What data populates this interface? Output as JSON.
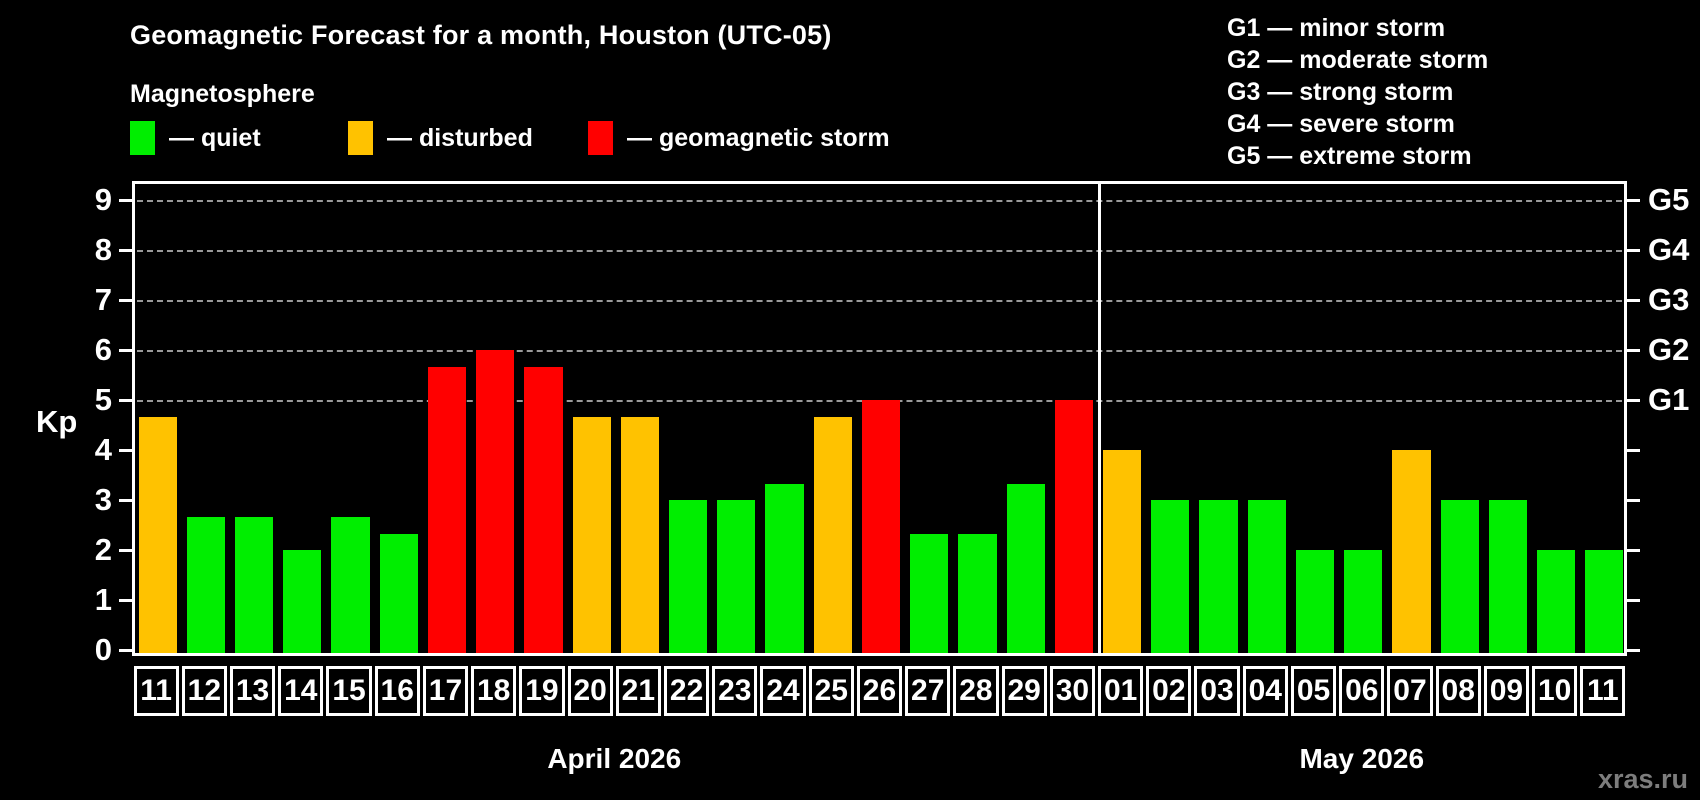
{
  "title": "Geomagnetic Forecast for a month, Houston (UTC-05)",
  "subtitle": "Magnetosphere",
  "legend": {
    "quiet": "— quiet",
    "disturbed": "— disturbed",
    "storm": "— geomagnetic storm"
  },
  "g_legend": [
    "G1 — minor storm",
    "G2 — moderate storm",
    "G3 — strong storm",
    "G4 — severe storm",
    "G5 — extreme storm"
  ],
  "axis": {
    "ylabel": "Kp",
    "left_ticks": [
      0,
      1,
      2,
      3,
      4,
      5,
      6,
      7,
      8,
      9
    ],
    "right_g_labels": [
      {
        "kp": 5,
        "label": "G1"
      },
      {
        "kp": 6,
        "label": "G2"
      },
      {
        "kp": 7,
        "label": "G3"
      },
      {
        "kp": 8,
        "label": "G4"
      },
      {
        "kp": 9,
        "label": "G5"
      }
    ]
  },
  "watermark": "xras.ru",
  "chart_data": {
    "type": "bar",
    "title": "Geomagnetic Forecast for a month, Houston (UTC-05)",
    "xlabel": "",
    "ylabel": "Kp",
    "ylim": [
      0,
      9.4
    ],
    "grid_kp_levels": [
      5,
      6,
      7,
      8,
      9
    ],
    "legend_position": "top-left",
    "status_colors": {
      "quiet": "#00EE00",
      "disturbed": "#FFC200",
      "storm": "#FF0000"
    },
    "months": [
      {
        "label": "April 2026",
        "days": 20
      },
      {
        "label": "May 2026",
        "days": 11
      }
    ],
    "points": [
      {
        "day": "11",
        "month": "April 2026",
        "kp": 4.67,
        "status": "disturbed"
      },
      {
        "day": "12",
        "month": "April 2026",
        "kp": 2.67,
        "status": "quiet"
      },
      {
        "day": "13",
        "month": "April 2026",
        "kp": 2.67,
        "status": "quiet"
      },
      {
        "day": "14",
        "month": "April 2026",
        "kp": 2.0,
        "status": "quiet"
      },
      {
        "day": "15",
        "month": "April 2026",
        "kp": 2.67,
        "status": "quiet"
      },
      {
        "day": "16",
        "month": "April 2026",
        "kp": 2.33,
        "status": "quiet"
      },
      {
        "day": "17",
        "month": "April 2026",
        "kp": 5.67,
        "status": "storm"
      },
      {
        "day": "18",
        "month": "April 2026",
        "kp": 6.0,
        "status": "storm"
      },
      {
        "day": "19",
        "month": "April 2026",
        "kp": 5.67,
        "status": "storm"
      },
      {
        "day": "20",
        "month": "April 2026",
        "kp": 4.67,
        "status": "disturbed"
      },
      {
        "day": "21",
        "month": "April 2026",
        "kp": 4.67,
        "status": "disturbed"
      },
      {
        "day": "22",
        "month": "April 2026",
        "kp": 3.0,
        "status": "quiet"
      },
      {
        "day": "23",
        "month": "April 2026",
        "kp": 3.0,
        "status": "quiet"
      },
      {
        "day": "24",
        "month": "April 2026",
        "kp": 3.33,
        "status": "quiet"
      },
      {
        "day": "25",
        "month": "April 2026",
        "kp": 4.67,
        "status": "disturbed"
      },
      {
        "day": "26",
        "month": "April 2026",
        "kp": 5.0,
        "status": "storm"
      },
      {
        "day": "27",
        "month": "April 2026",
        "kp": 2.33,
        "status": "quiet"
      },
      {
        "day": "28",
        "month": "April 2026",
        "kp": 2.33,
        "status": "quiet"
      },
      {
        "day": "29",
        "month": "April 2026",
        "kp": 3.33,
        "status": "quiet"
      },
      {
        "day": "30",
        "month": "April 2026",
        "kp": 5.0,
        "status": "storm"
      },
      {
        "day": "01",
        "month": "May 2026",
        "kp": 4.0,
        "status": "disturbed"
      },
      {
        "day": "02",
        "month": "May 2026",
        "kp": 3.0,
        "status": "quiet"
      },
      {
        "day": "03",
        "month": "May 2026",
        "kp": 3.0,
        "status": "quiet"
      },
      {
        "day": "04",
        "month": "May 2026",
        "kp": 3.0,
        "status": "quiet"
      },
      {
        "day": "05",
        "month": "May 2026",
        "kp": 2.0,
        "status": "quiet"
      },
      {
        "day": "06",
        "month": "May 2026",
        "kp": 2.0,
        "status": "quiet"
      },
      {
        "day": "07",
        "month": "May 2026",
        "kp": 4.0,
        "status": "disturbed"
      },
      {
        "day": "08",
        "month": "May 2026",
        "kp": 3.0,
        "status": "quiet"
      },
      {
        "day": "09",
        "month": "May 2026",
        "kp": 3.0,
        "status": "quiet"
      },
      {
        "day": "10",
        "month": "May 2026",
        "kp": 2.0,
        "status": "quiet"
      },
      {
        "day": "11",
        "month": "May 2026",
        "kp": 2.0,
        "status": "quiet"
      }
    ]
  }
}
